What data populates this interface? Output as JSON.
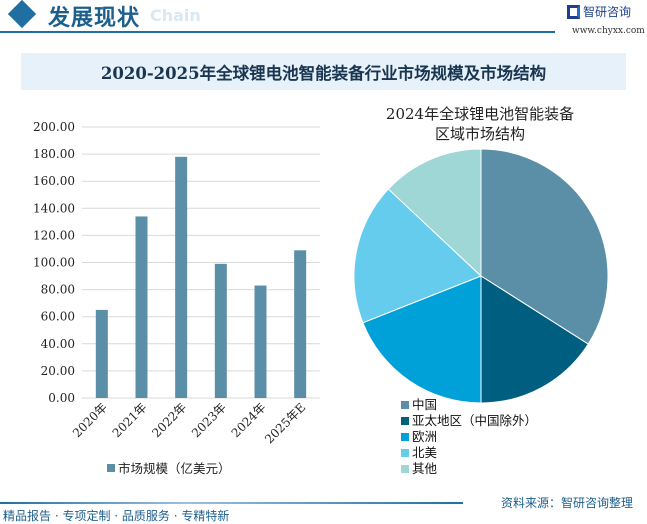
{
  "header": {
    "title": "发展现状",
    "ghost": "Chain",
    "brand": "智研咨询",
    "url": "www.chyxx.com"
  },
  "main_title": "2020-2025年全球锂电池智能装备行业市场规模及市场结构",
  "footer": {
    "left": "精品报告 · 专项定制 · 品质服务 · 专精特新",
    "source": "资料来源：智研咨询整理"
  },
  "chart_data": [
    {
      "type": "bar",
      "categories": [
        "2020年",
        "2021年",
        "2022年",
        "2023年",
        "2024年",
        "2025年E"
      ],
      "series": [
        {
          "name": "市场规模（亿美元）",
          "values": [
            65,
            134,
            178,
            99,
            83,
            109
          ],
          "color": "#5b8fa8"
        }
      ],
      "ylim": [
        0,
        200
      ],
      "yticks": [
        "0.00",
        "20.00",
        "40.00",
        "60.00",
        "80.00",
        "100.00",
        "120.00",
        "140.00",
        "160.00",
        "180.00",
        "200.00"
      ],
      "grid": true,
      "legend": "bottom"
    },
    {
      "type": "pie",
      "title_lines": [
        "2024年全球锂电池智能装备",
        "区域市场结构"
      ],
      "slices": [
        {
          "label": "中国",
          "value": 34,
          "color": "#5b8fa8"
        },
        {
          "label": "亚太地区（中国除外）",
          "value": 16,
          "color": "#005f80"
        },
        {
          "label": "欧洲",
          "value": 19,
          "color": "#00a0d8"
        },
        {
          "label": "北美",
          "value": 18,
          "color": "#66ccee"
        },
        {
          "label": "其他",
          "value": 13,
          "color": "#9fd6d6"
        }
      ],
      "legend": "bottom-left"
    }
  ]
}
